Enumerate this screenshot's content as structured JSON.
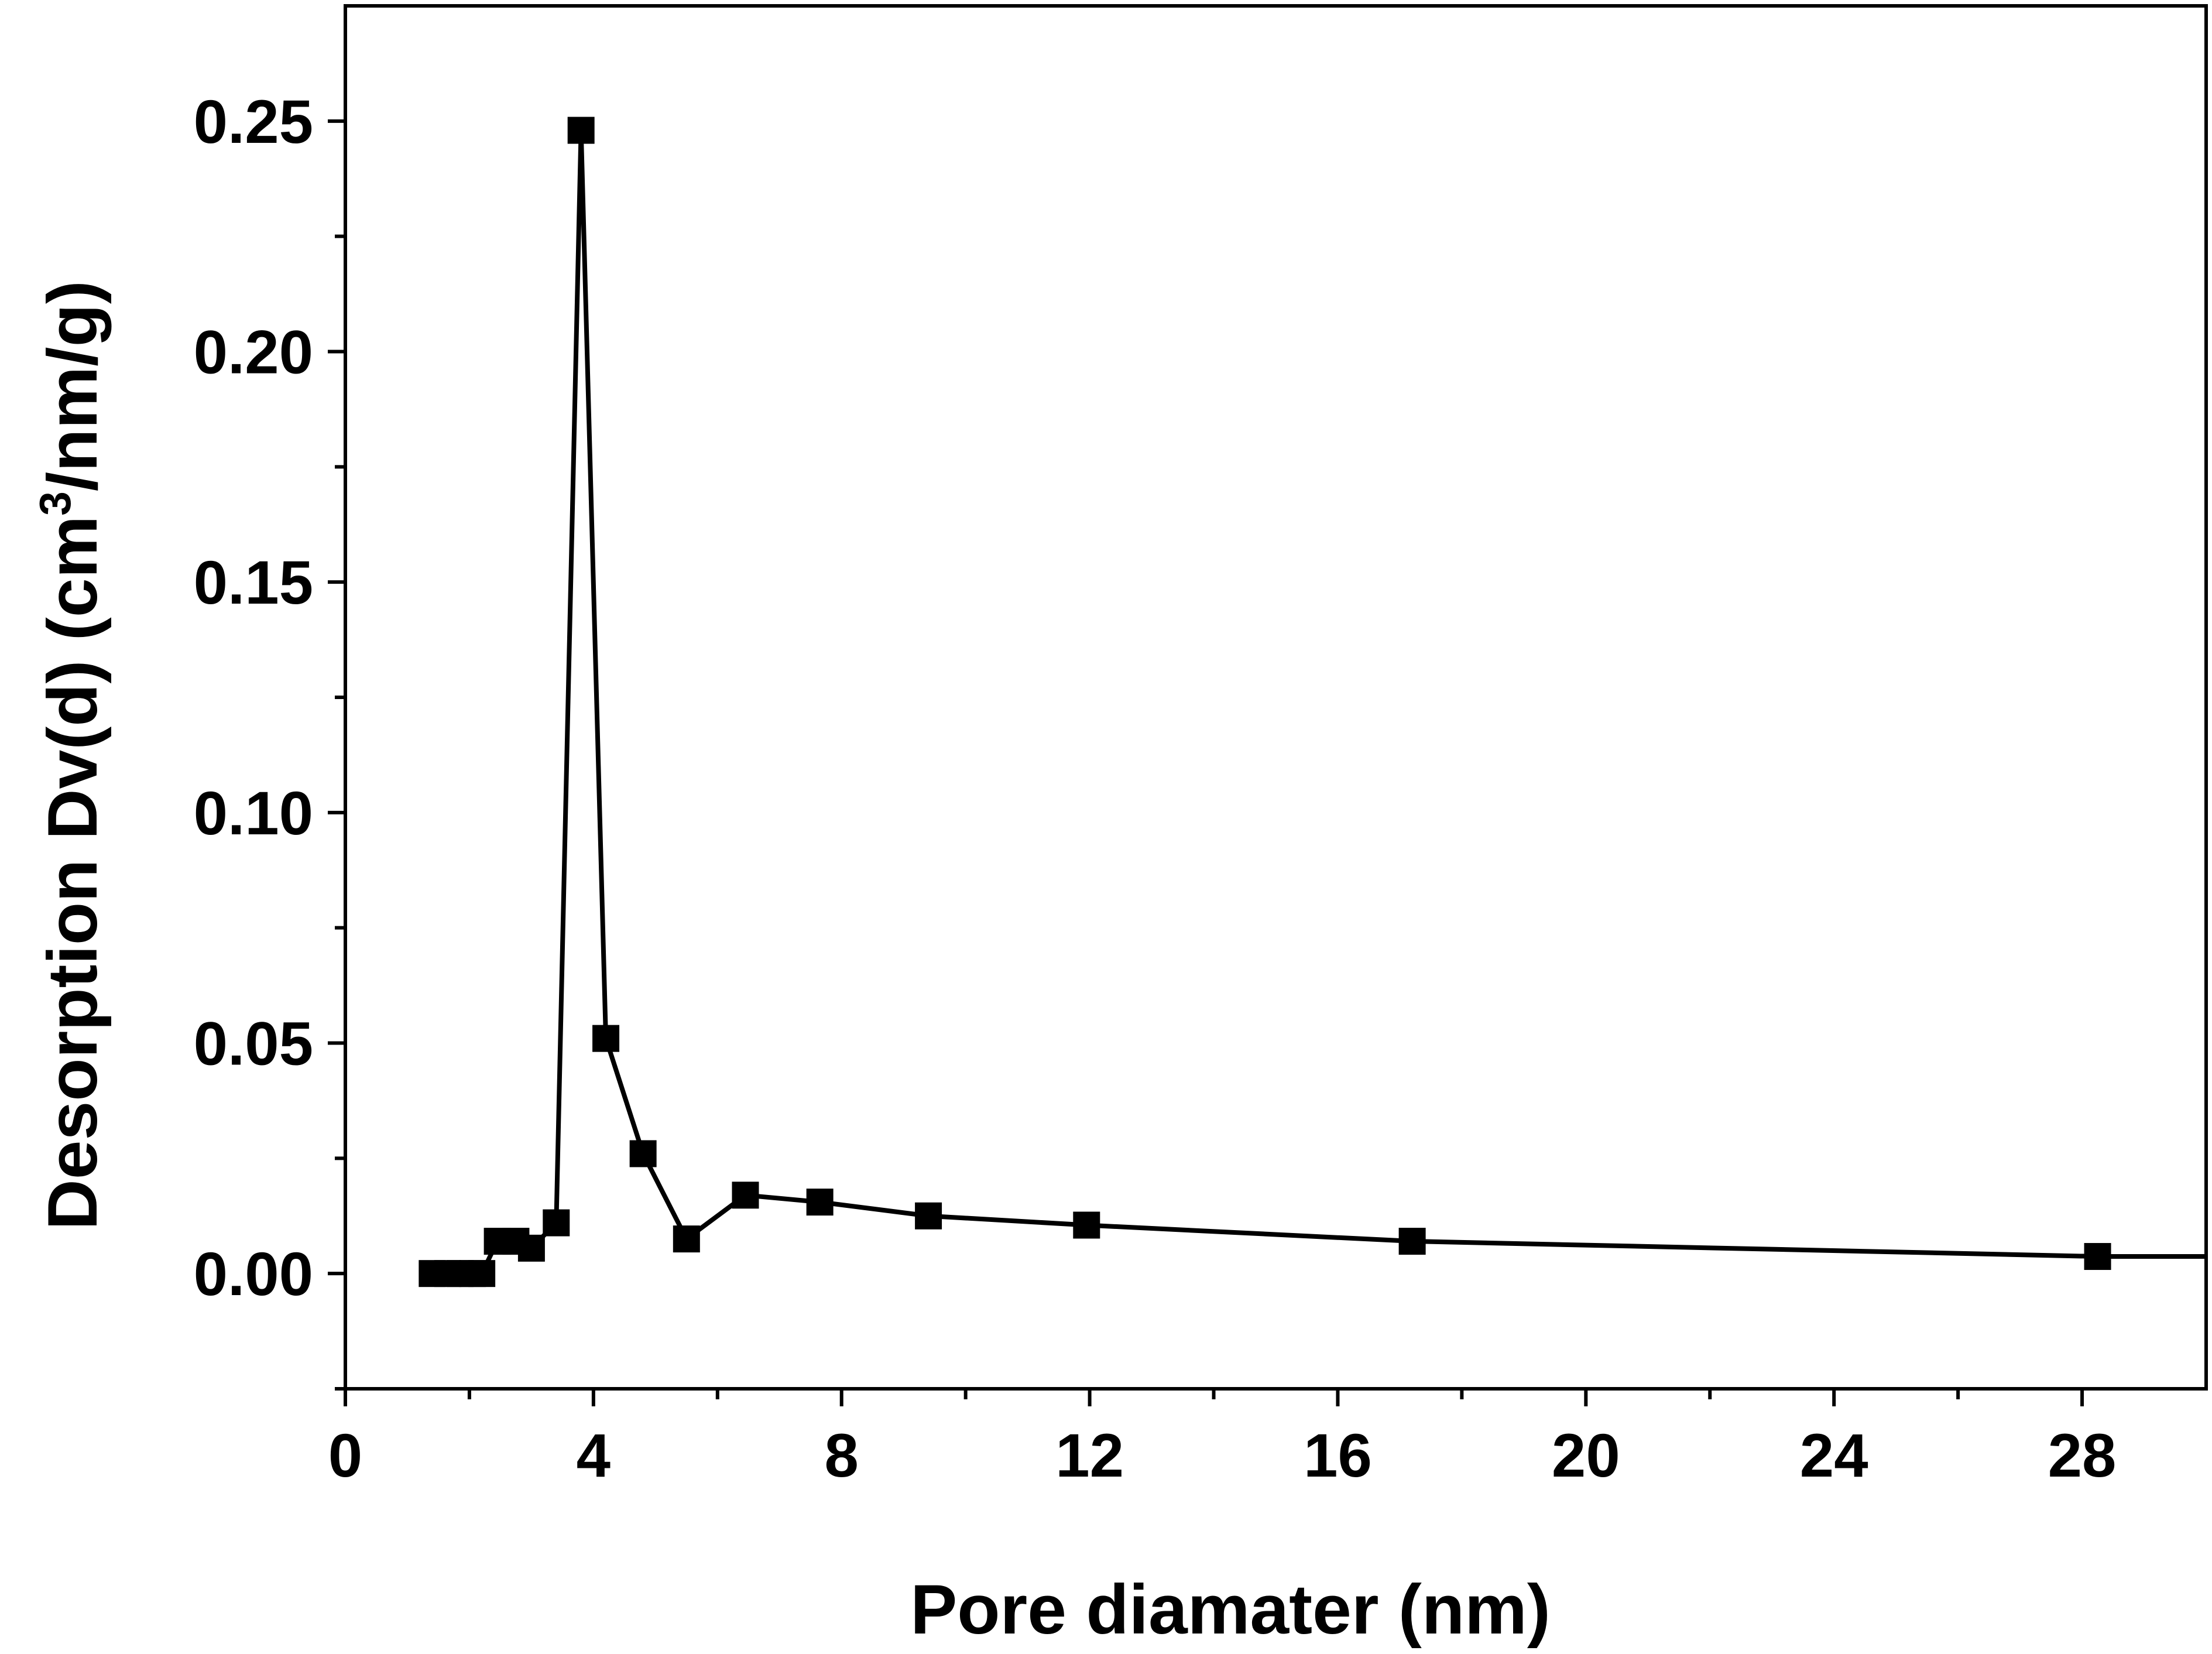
{
  "chart_data": {
    "type": "line",
    "xlabel": "Pore diamater (nm)",
    "ylabel_main": "Desorption Dv(d) (cm",
    "ylabel_sup": "3",
    "ylabel_tail": "/nm/g)",
    "xlim": [
      0,
      30
    ],
    "ylim": [
      -0.025,
      0.275
    ],
    "x_ticks": [
      0,
      4,
      8,
      12,
      16,
      20,
      24,
      28
    ],
    "x_minor_ticks": [
      2,
      6,
      10,
      14,
      18,
      22,
      26
    ],
    "y_ticks": [
      0.0,
      0.05,
      0.1,
      0.15,
      0.2,
      0.25
    ],
    "y_minor_ticks": [
      -0.025,
      0.025,
      0.075,
      0.125,
      0.175,
      0.225
    ],
    "x_tick_labels": [
      "0",
      "4",
      "8",
      "12",
      "16",
      "20",
      "24",
      "28"
    ],
    "y_tick_labels": [
      "0.00",
      "0.05",
      "0.10",
      "0.15",
      "0.20",
      "0.25"
    ],
    "series": [
      {
        "marker": "square",
        "color": "#000000",
        "points": [
          [
            1.4,
            0.0
          ],
          [
            1.65,
            0.0
          ],
          [
            1.85,
            0.0
          ],
          [
            2.05,
            0.0
          ],
          [
            2.2,
            0.0
          ],
          [
            2.45,
            0.007
          ],
          [
            2.75,
            0.007
          ],
          [
            3.0,
            0.0055
          ],
          [
            3.4,
            0.011
          ],
          [
            3.8,
            0.248
          ],
          [
            4.2,
            0.051
          ],
          [
            4.8,
            0.026
          ],
          [
            5.5,
            0.0075
          ],
          [
            6.45,
            0.017
          ],
          [
            7.65,
            0.0155
          ],
          [
            9.4,
            0.0125
          ],
          [
            11.95,
            0.0105
          ],
          [
            17.2,
            0.007
          ],
          [
            28.25,
            0.0037
          ]
        ],
        "line_end": [
          30.0,
          0.0037
        ]
      }
    ]
  }
}
